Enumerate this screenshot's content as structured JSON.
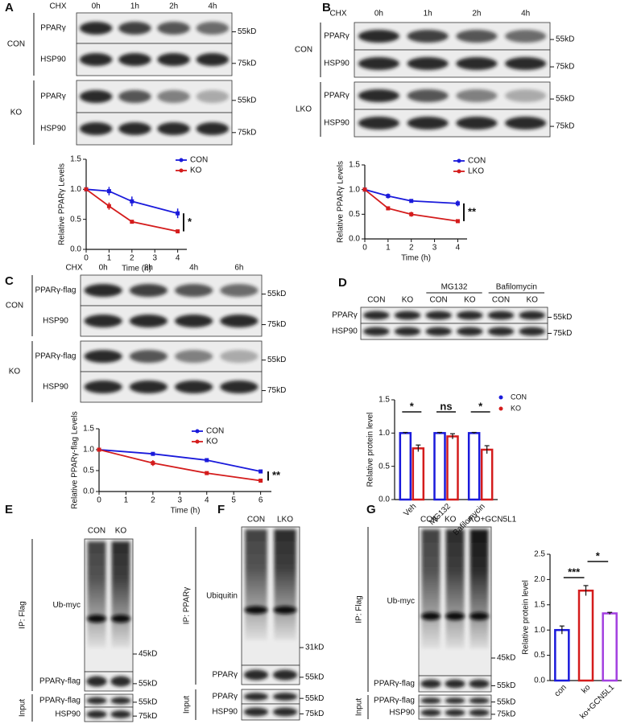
{
  "panels": [
    {
      "letter": "A",
      "treatment": "CHX",
      "lanes": [
        "0h",
        "1h",
        "2h",
        "4h"
      ],
      "groups": [
        {
          "name": "CON",
          "rows": [
            {
              "label": "PPARγ",
              "marker": "55kD"
            },
            {
              "label": "HSP90",
              "marker": "75kD"
            }
          ]
        },
        {
          "name": "KO",
          "rows": [
            {
              "label": "PPARγ",
              "marker": "55kD"
            },
            {
              "label": "HSP90",
              "marker": "75kD"
            }
          ]
        }
      ]
    },
    {
      "letter": "B",
      "treatment": "CHX",
      "lanes": [
        "0h",
        "1h",
        "2h",
        "4h"
      ],
      "groups": [
        {
          "name": "CON",
          "rows": [
            {
              "label": "PPARγ",
              "marker": "55kD"
            },
            {
              "label": "HSP90",
              "marker": "75kD"
            }
          ]
        },
        {
          "name": "LKO",
          "rows": [
            {
              "label": "PPARγ",
              "marker": "55kD"
            },
            {
              "label": "HSP90",
              "marker": "75kD"
            }
          ]
        }
      ]
    },
    {
      "letter": "C",
      "treatment": "CHX",
      "lanes": [
        "0h",
        "2h",
        "4h",
        "6h"
      ],
      "groups": [
        {
          "name": "CON",
          "rows": [
            {
              "label": "PPARγ-flag",
              "marker": "55kD"
            },
            {
              "label": "HSP90",
              "marker": "75kD"
            }
          ]
        },
        {
          "name": "KO",
          "rows": [
            {
              "label": "PPARγ-flag",
              "marker": "55kD"
            },
            {
              "label": "HSP90",
              "marker": "75kD"
            }
          ]
        }
      ]
    },
    {
      "letter": "D",
      "treatments": [
        "MG132",
        "Bafilomycin"
      ],
      "lanes": [
        "CON",
        "KO",
        "CON",
        "KO",
        "CON",
        "KO"
      ],
      "groups": [
        {
          "rows": [
            {
              "label": "PPARγ",
              "marker": "55kD"
            },
            {
              "label": "HSP90",
              "marker": "75kD"
            }
          ]
        }
      ]
    },
    {
      "letter": "E",
      "lanes": [
        "CON",
        "KO"
      ],
      "groups": [
        {
          "name": "IP: Flag",
          "rows": [
            {
              "label": "Ub-myc",
              "marker": "45kD"
            },
            {
              "label": "PPARγ-flag",
              "marker": "55kD"
            }
          ]
        },
        {
          "name": "Input",
          "rows": [
            {
              "label": "PPARγ-flag",
              "marker": "55kD"
            },
            {
              "label": "HSP90",
              "marker": "75kD"
            }
          ]
        }
      ]
    },
    {
      "letter": "F",
      "lanes": [
        "CON",
        "LKO"
      ],
      "groups": [
        {
          "name": "IP: PPARγ",
          "rows": [
            {
              "label": "Ubiquitin",
              "marker": "31kD"
            },
            {
              "label": "PPARγ",
              "marker": "55kD"
            }
          ]
        },
        {
          "name": "Input",
          "rows": [
            {
              "label": "PPARγ",
              "marker": "55kD"
            },
            {
              "label": "HSP90",
              "marker": "75kD"
            }
          ]
        }
      ]
    },
    {
      "letter": "G",
      "lanes": [
        "CON",
        "KO",
        "KO+GCN5L1"
      ],
      "groups": [
        {
          "name": "IP: Flag",
          "rows": [
            {
              "label": "Ub-myc",
              "marker": "45kD"
            },
            {
              "label": "PPARγ-flag",
              "marker": "55kD"
            }
          ]
        },
        {
          "name": "Input",
          "rows": [
            {
              "label": "PPARγ-flag",
              "marker": "55kD"
            },
            {
              "label": "HSP90",
              "marker": "75kD"
            }
          ]
        }
      ]
    }
  ],
  "chart_data": [
    {
      "type": "line",
      "x_label": "Time (h)",
      "y_label": "Relative PPARγ Levels",
      "x": [
        0,
        1,
        2,
        4
      ],
      "xlim": [
        0,
        4.4
      ],
      "xticks": [
        0,
        1,
        2,
        3,
        4
      ],
      "ylim": [
        0,
        1.5
      ],
      "yticks": [
        {
          "value": 0,
          "label": "0.0"
        },
        0.5,
        {
          "value": 1,
          "label": "1.0"
        },
        1.5
      ],
      "series": [
        {
          "name": "CON",
          "color": "#1a1adb",
          "values": [
            1.0,
            0.97,
            0.8,
            0.6
          ],
          "errors": [
            0,
            0.07,
            0.08,
            0.08
          ]
        },
        {
          "name": "KO",
          "color": "#d41c1c",
          "values": [
            1.0,
            0.72,
            0.46,
            0.3
          ],
          "errors": [
            0,
            0.06,
            0.02,
            0.03
          ]
        }
      ],
      "annotations": [
        "*"
      ]
    },
    {
      "type": "line",
      "x_label": "Time (h)",
      "y_label": "Relative PPARγ Levels",
      "x": [
        0,
        1,
        2,
        4
      ],
      "xlim": [
        0,
        4.4
      ],
      "xticks": [
        0,
        1,
        2,
        3,
        4
      ],
      "ylim": [
        0,
        1.5
      ],
      "yticks": [
        {
          "value": 0,
          "label": "0.0"
        },
        0.5,
        {
          "value": 1,
          "label": "1.0"
        },
        1.5
      ],
      "series": [
        {
          "name": "CON",
          "color": "#1a1adb",
          "values": [
            1.0,
            0.87,
            0.77,
            0.72
          ],
          "errors": [
            0,
            0.05,
            0.03,
            0.06
          ]
        },
        {
          "name": "LKO",
          "color": "#d41c1c",
          "values": [
            1.0,
            0.62,
            0.5,
            0.36
          ],
          "errors": [
            0,
            0.04,
            0.05,
            0.02
          ]
        }
      ],
      "annotations": [
        "**"
      ]
    },
    {
      "type": "line",
      "x_label": "Time (h)",
      "y_label": "Relative PPARγ-flag Levels",
      "x": [
        0,
        2,
        4,
        6
      ],
      "xlim": [
        0,
        6.4
      ],
      "xticks": [
        0,
        1,
        2,
        3,
        4,
        5,
        6
      ],
      "ylim": [
        0,
        1.5
      ],
      "yticks": [
        {
          "value": 0,
          "label": "0.0"
        },
        0.5,
        {
          "value": 1,
          "label": "1.0"
        },
        1.5
      ],
      "series": [
        {
          "name": "CON",
          "color": "#1a1adb",
          "values": [
            1.0,
            0.9,
            0.75,
            0.48
          ],
          "errors": [
            0,
            0.03,
            0.04,
            0.02
          ]
        },
        {
          "name": "KO",
          "color": "#d41c1c",
          "values": [
            1.0,
            0.68,
            0.44,
            0.26
          ],
          "errors": [
            0,
            0.07,
            0.02,
            0.04
          ]
        }
      ],
      "annotations": [
        "**"
      ]
    },
    {
      "type": "bar",
      "y_label": "Relative protein level",
      "categories": [
        "Veh",
        "MG132",
        "Bafilomycin"
      ],
      "ylim": [
        0,
        1.5
      ],
      "yticks": [
        {
          "value": 0,
          "label": "0.0"
        },
        0.5,
        {
          "value": 1,
          "label": "1.0"
        },
        1.5
      ],
      "series": [
        {
          "name": "CON",
          "color": "#1a1adb",
          "values": [
            1.0,
            1.0,
            1.0
          ],
          "errors": [
            0.01,
            0.01,
            0.01
          ]
        },
        {
          "name": "KO",
          "color": "#d41c1c",
          "values": [
            0.77,
            0.95,
            0.75
          ],
          "errors": [
            0.05,
            0.04,
            0.06
          ]
        }
      ],
      "annotations": [
        "*",
        "ns",
        "*"
      ]
    },
    {
      "type": "bar",
      "y_label": "Relative protein level",
      "categories": [
        "con",
        "ko",
        "ko+GCN5L1"
      ],
      "values": [
        1.0,
        1.78,
        1.33
      ],
      "errors": [
        0.08,
        0.1,
        0.02
      ],
      "colors": [
        "#1a1adb",
        "#d41c1c",
        "#a23fe0"
      ],
      "ylim": [
        0,
        2.5
      ],
      "yticks": [
        {
          "value": 0,
          "label": "0.0"
        },
        0.5,
        {
          "value": 1,
          "label": "1.0"
        },
        1.5,
        {
          "value": 2,
          "label": "2.0"
        },
        2.5
      ],
      "annotations": [
        "***",
        "*"
      ]
    }
  ]
}
